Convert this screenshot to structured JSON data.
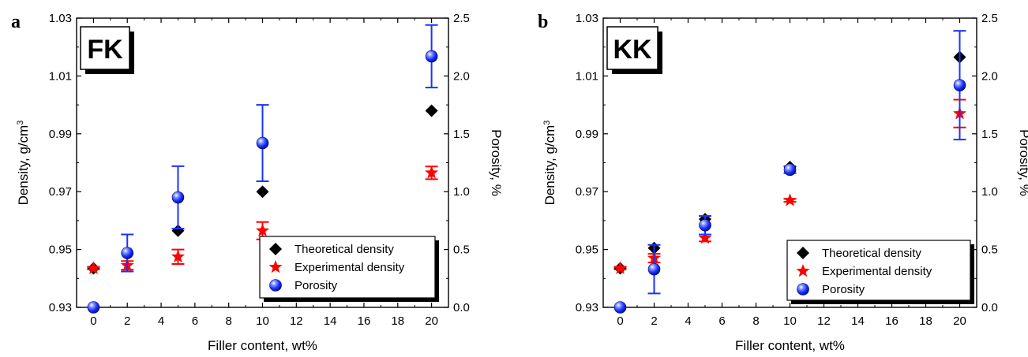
{
  "chart_data": [
    {
      "type": "scatter",
      "panel_label": "a",
      "title": "FK",
      "xlabel": "Filler content, wt%",
      "ylabel": "Density, g/cm",
      "ylabel_sup": "3",
      "y2label": "Porosity, %",
      "xlim": [
        -1,
        21
      ],
      "ylim": [
        0.93,
        1.03
      ],
      "y2lim": [
        0.0,
        2.5
      ],
      "xticks": [
        0,
        2,
        4,
        6,
        8,
        10,
        12,
        14,
        16,
        18,
        20
      ],
      "xtick_labels": [
        "0",
        "2",
        "4",
        "6",
        "8",
        "10",
        "12",
        "14",
        "16",
        "18",
        "20"
      ],
      "yticks": [
        0.93,
        0.95,
        0.97,
        0.99,
        1.01,
        1.03
      ],
      "ytick_labels": [
        "0.93",
        "0.95",
        "0.97",
        "0.99",
        "1.01",
        "1.03"
      ],
      "y2ticks": [
        0.0,
        0.5,
        1.0,
        1.5,
        2.0,
        2.5
      ],
      "y2tick_labels": [
        "0.0",
        "0.5",
        "1.0",
        "1.5",
        "2.0",
        "2.5"
      ],
      "grid": false,
      "legend_position": "bottom-right",
      "series": [
        {
          "name": "Theoretical density",
          "marker": "diamond",
          "color": "#000000",
          "axis": "left",
          "x": [
            0,
            2,
            5,
            10,
            20
          ],
          "y": [
            0.9435,
            0.9485,
            0.9565,
            0.97,
            0.998
          ]
        },
        {
          "name": "Experimental density",
          "marker": "star",
          "color": "#ff0000",
          "axis": "left",
          "x": [
            0,
            2,
            5,
            10,
            20
          ],
          "y": [
            0.9435,
            0.9445,
            0.9475,
            0.9565,
            0.9765
          ],
          "err": [
            0.0004,
            0.0015,
            0.0025,
            0.003,
            0.0022
          ]
        },
        {
          "name": "Porosity",
          "marker": "sphere",
          "color": "#1a33ff",
          "axis": "right",
          "x": [
            0,
            2,
            5,
            10,
            20
          ],
          "y": [
            0.0,
            0.47,
            0.95,
            1.42,
            2.17
          ],
          "err": [
            0.0,
            0.16,
            0.27,
            0.33,
            0.27
          ]
        }
      ]
    },
    {
      "type": "scatter",
      "panel_label": "b",
      "title": "KK",
      "xlabel": "Filler content, wt%",
      "ylabel": "Density, g/cm",
      "ylabel_sup": "3",
      "y2label": "Porosity, %",
      "xlim": [
        -1,
        21
      ],
      "ylim": [
        0.93,
        1.03
      ],
      "y2lim": [
        0.0,
        2.5
      ],
      "xticks": [
        0,
        2,
        4,
        6,
        8,
        10,
        12,
        14,
        16,
        18,
        20
      ],
      "xtick_labels": [
        "0",
        "2",
        "4",
        "6",
        "8",
        "10",
        "12",
        "14",
        "16",
        "18",
        "20"
      ],
      "yticks": [
        0.93,
        0.95,
        0.97,
        0.99,
        1.01,
        1.03
      ],
      "ytick_labels": [
        "0.93",
        "0.95",
        "0.97",
        "0.99",
        "1.01",
        "1.03"
      ],
      "y2ticks": [
        0.0,
        0.5,
        1.0,
        1.5,
        2.0,
        2.5
      ],
      "y2tick_labels": [
        "0.0",
        "0.5",
        "1.0",
        "1.5",
        "2.0",
        "2.5"
      ],
      "grid": false,
      "legend_position": "bottom-right",
      "series": [
        {
          "name": "Theoretical density",
          "marker": "diamond",
          "color": "#000000",
          "axis": "left",
          "x": [
            0,
            2,
            5,
            10,
            20
          ],
          "y": [
            0.9435,
            0.9505,
            0.9605,
            0.9785,
            1.0165
          ]
        },
        {
          "name": "Experimental density",
          "marker": "star",
          "color": "#ff0000",
          "axis": "left",
          "x": [
            0,
            2,
            5,
            10,
            20
          ],
          "y": [
            0.9435,
            0.947,
            0.954,
            0.967,
            0.997
          ],
          "err": [
            0.0004,
            0.0015,
            0.0012,
            0.0005,
            0.0048
          ]
        },
        {
          "name": "Porosity",
          "marker": "sphere",
          "color": "#1a33ff",
          "axis": "right",
          "x": [
            0,
            2,
            5,
            10,
            20
          ],
          "y": [
            0.0,
            0.33,
            0.71,
            1.19,
            1.92
          ],
          "err": [
            0.0,
            0.21,
            0.08,
            0.03,
            0.47
          ]
        }
      ]
    }
  ]
}
